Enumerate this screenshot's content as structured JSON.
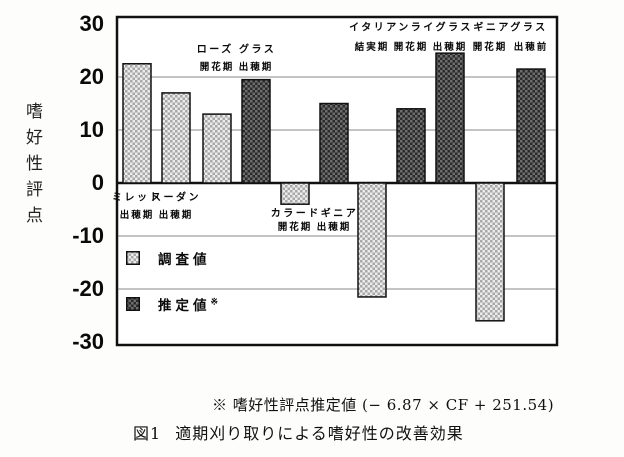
{
  "figure": {
    "ylabel_vertical": "嗜好性評点",
    "footnote": "※ 嗜好性評点推定値 (− 6.87 × CF + 251.54)",
    "caption_number": "図1",
    "caption_text": "適期刈り取りによる嗜好性の改善効果"
  },
  "legend": [
    {
      "label": "調査値",
      "sup": "",
      "series": "survey"
    },
    {
      "label": "推定値",
      "sup": "※",
      "series": "estimate"
    }
  ],
  "colors": {
    "ink": "#0a0a0a",
    "gridline": "#8a8a8a",
    "survey_light": "#ececec",
    "survey_dark": "#a8a8a8",
    "estimate_light": "#6e6e6e",
    "estimate_dark": "#2b2b2b",
    "plot_bg": "#ffffff"
  },
  "chart_data": {
    "type": "bar",
    "title": "",
    "xlabel": "",
    "ylabel": "嗜好性評点",
    "ylim": [
      -30,
      30
    ],
    "yticks": [
      30,
      20,
      10,
      0,
      -10,
      -20,
      -30
    ],
    "grid": true,
    "grid_values": [
      20,
      10,
      -10,
      -20
    ],
    "legend_position": "inside-lower-left",
    "series_legend": {
      "survey": "調査値",
      "estimate": "推定値※"
    },
    "bars": [
      {
        "group": "ミレット",
        "stage": "出穂期",
        "value": 22.5,
        "series": "survey"
      },
      {
        "group": "スーダン",
        "stage": "出穂期",
        "value": 17,
        "series": "survey"
      },
      {
        "group": "ローズ グラス",
        "stage": "開花期",
        "value": 13,
        "series": "survey"
      },
      {
        "group": "ローズ グラス",
        "stage": "出穂期",
        "value": 19.5,
        "series": "estimate"
      },
      {
        "group": "カラードギニア",
        "stage": "開花期",
        "value": -4,
        "series": "survey"
      },
      {
        "group": "カラードギニア",
        "stage": "出穂期",
        "value": 15,
        "series": "estimate"
      },
      {
        "group": "イタリアンライグラス",
        "stage": "結実期",
        "value": -21.5,
        "series": "survey"
      },
      {
        "group": "イタリアンライグラス",
        "stage": "開花期",
        "value": 14,
        "series": "estimate"
      },
      {
        "group": "イタリアンライグラス",
        "stage": "出穂期",
        "value": 24.5,
        "series": "estimate"
      },
      {
        "group": "ギニアグラス",
        "stage": "開花期",
        "value": -26,
        "series": "survey"
      },
      {
        "group": "ギニアグラス",
        "stage": "出穂前",
        "value": 21.5,
        "series": "estimate"
      }
    ],
    "group_labels": [
      {
        "text": "ミレット",
        "bars": [
          0
        ],
        "row": "below1"
      },
      {
        "text": "スーダン",
        "bars": [
          1
        ],
        "row": "below1"
      },
      {
        "text": "ローズ グラス",
        "bars": [
          2,
          3
        ],
        "row": "upper2"
      },
      {
        "text": "カラードギニア",
        "bars": [
          4,
          5
        ],
        "row": "below2"
      },
      {
        "text": "イタリアンライグラス",
        "bars": [
          6,
          7,
          8
        ],
        "row": "upper1"
      },
      {
        "text": "ギニアグラス",
        "bars": [
          9,
          10
        ],
        "row": "upper1"
      }
    ]
  }
}
